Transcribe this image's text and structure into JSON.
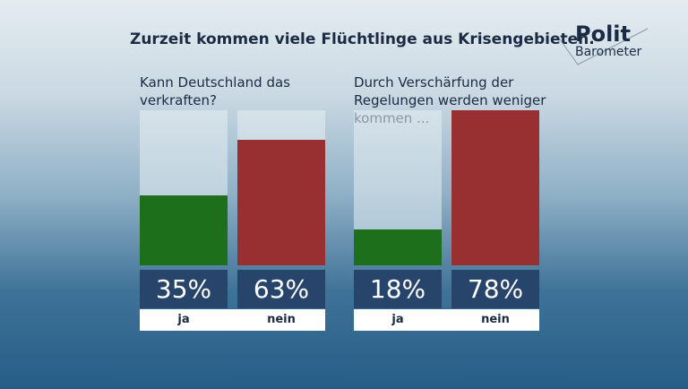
{
  "title": "Zurzeit kommen viele Flüchtlinge aus Krisengebieten.",
  "logo": {
    "line1": "Polit",
    "line2": "Barometer"
  },
  "chart_data": [
    {
      "type": "bar",
      "title": "Kann Deutschland das verkraften?",
      "categories": [
        "ja",
        "nein"
      ],
      "values": [
        35,
        63
      ],
      "labels": [
        "35%",
        "63%"
      ],
      "colors": [
        "#1e6f1c",
        "#983032"
      ],
      "ylim": [
        0,
        78
      ]
    },
    {
      "type": "bar",
      "title": "Durch Verschärfung der Regelungen werden weniger kommen ...",
      "categories": [
        "ja",
        "nein"
      ],
      "values": [
        18,
        78
      ],
      "labels": [
        "18%",
        "78%"
      ],
      "colors": [
        "#1e6f1c",
        "#983032"
      ],
      "ylim": [
        0,
        78
      ]
    }
  ]
}
